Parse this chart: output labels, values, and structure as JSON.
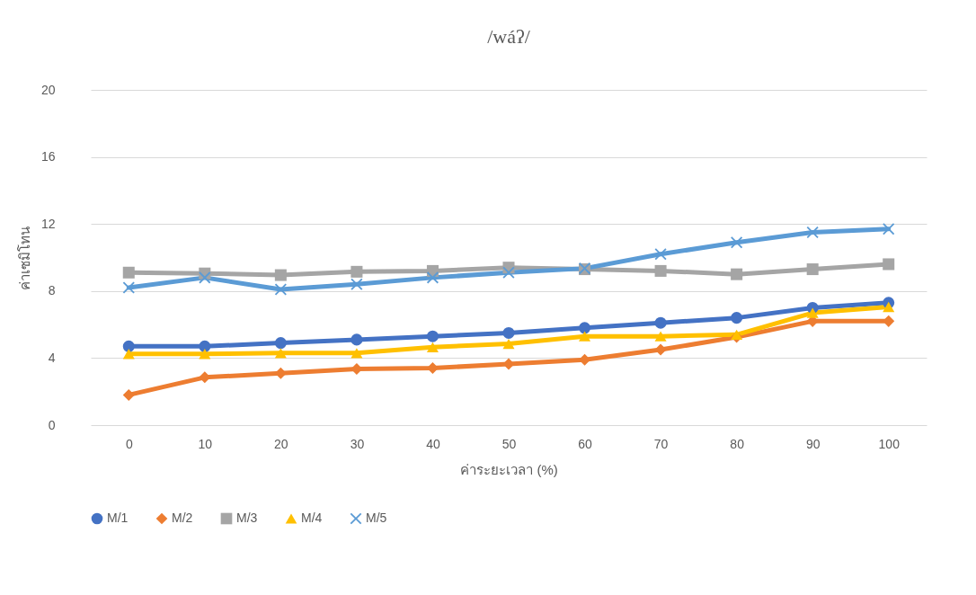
{
  "chart_data": {
    "type": "line",
    "title": "/wáʔ/",
    "xlabel": "ค่าระยะเวลา (%)",
    "ylabel": "ค่าเซมิโทน",
    "categories": [
      "0",
      "10",
      "20",
      "30",
      "40",
      "50",
      "60",
      "70",
      "80",
      "90",
      "100"
    ],
    "ylim": [
      0,
      20
    ],
    "yticks": [
      0,
      4,
      8,
      12,
      16,
      20
    ],
    "grid": "y",
    "legend": "bottom",
    "series": [
      {
        "name": "M/1",
        "color": "#4472c4",
        "marker": "circle",
        "values": [
          4.7,
          4.7,
          4.9,
          5.1,
          5.3,
          5.5,
          5.8,
          6.1,
          6.4,
          7.0,
          7.3
        ]
      },
      {
        "name": "M/2",
        "color": "#ed7d31",
        "marker": "diamond",
        "values": [
          1.8,
          2.85,
          3.1,
          3.35,
          3.4,
          3.65,
          3.9,
          4.5,
          5.25,
          6.2,
          6.2
        ]
      },
      {
        "name": "M/3",
        "color": "#a5a5a5",
        "marker": "square",
        "values": [
          9.1,
          9.05,
          8.95,
          9.15,
          9.2,
          9.4,
          9.3,
          9.2,
          9.0,
          9.3,
          9.6
        ]
      },
      {
        "name": "M/4",
        "color": "#ffc000",
        "marker": "triangle",
        "values": [
          4.25,
          4.25,
          4.3,
          4.3,
          4.65,
          4.85,
          5.3,
          5.3,
          5.4,
          6.7,
          7.05
        ]
      },
      {
        "name": "M/5",
        "color": "#5b9bd5",
        "marker": "cross",
        "values": [
          8.2,
          8.8,
          8.1,
          8.4,
          8.8,
          9.1,
          9.35,
          10.2,
          10.9,
          11.5,
          11.7
        ]
      }
    ]
  }
}
